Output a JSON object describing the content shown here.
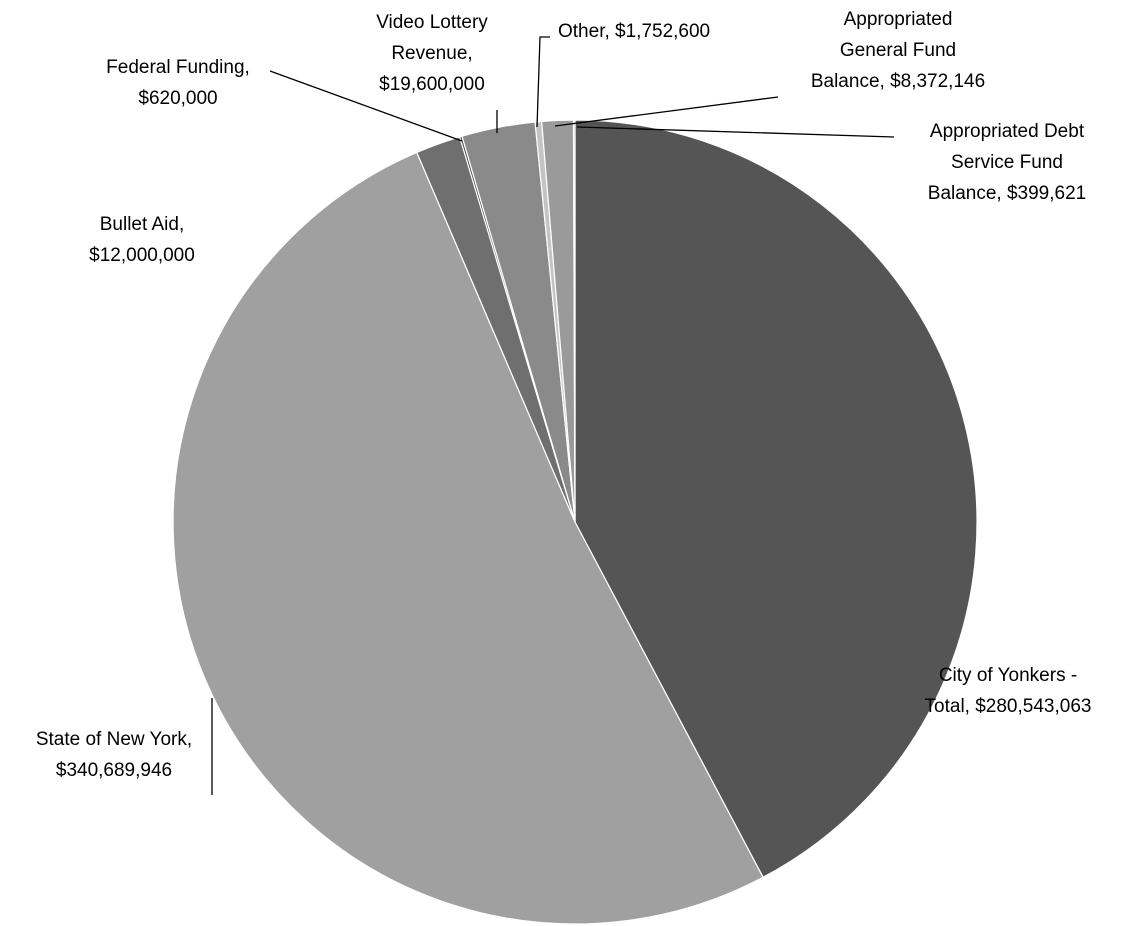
{
  "chart_data": {
    "type": "pie",
    "title": "",
    "start": "12 o'clock",
    "direction": "clockwise",
    "legend": "none; category labels placed beside slices with leader lines",
    "slices": [
      {
        "name": "City of Yonkers - Total",
        "value": 280543063,
        "label_lines": [
          "City of Yonkers -",
          "Total, $280,543,063"
        ],
        "color": "#555555"
      },
      {
        "name": "State of New York",
        "value": 340689946,
        "label_lines": [
          "State of New York,",
          "$340,689,946"
        ],
        "color": "#a0a0a0"
      },
      {
        "name": "Bullet Aid",
        "value": 12000000,
        "label_lines": [
          "Bullet Aid,",
          "$12,000,000"
        ],
        "color": "#6f6f6f"
      },
      {
        "name": "Federal Funding",
        "value": 620000,
        "label_lines": [
          "Federal Funding,",
          "$620,000"
        ],
        "color": "#4a4a4a"
      },
      {
        "name": "Video Lottery Revenue",
        "value": 19600000,
        "label_lines": [
          "Video Lottery",
          "Revenue,",
          "$19,600,000"
        ],
        "color": "#8a8a8a"
      },
      {
        "name": "Other",
        "value": 1752600,
        "label_lines": [
          "Other, $1,752,600"
        ],
        "color": "#c4c4c4"
      },
      {
        "name": "Appropriated General Fund Balance",
        "value": 8372146,
        "label_lines": [
          "Appropriated",
          "General Fund",
          "Balance, $8,372,146"
        ],
        "color": "#9a9a9a"
      },
      {
        "name": "Appropriated Debt Service Fund Balance",
        "value": 399621,
        "label_lines": [
          "Appropriated Debt",
          "Service Fund",
          "Balance, $399,621"
        ],
        "color": "#b8b8b8"
      }
    ]
  }
}
